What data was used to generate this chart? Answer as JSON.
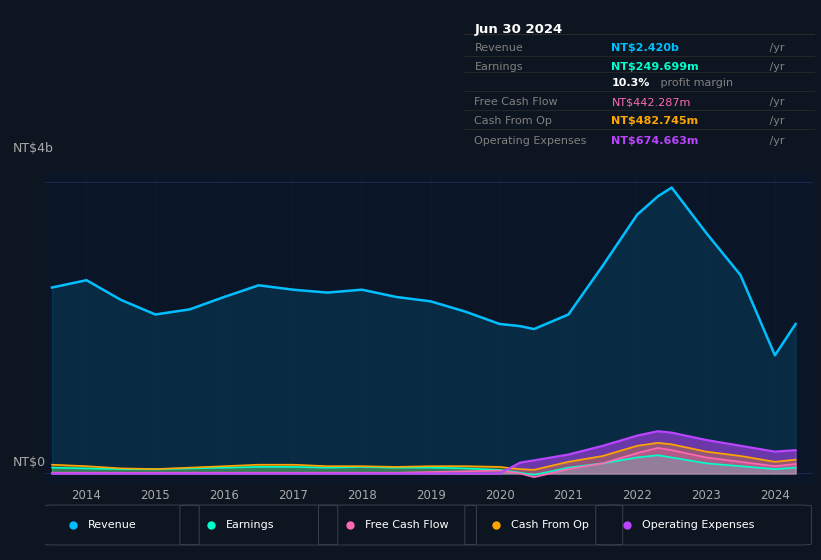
{
  "bg_color": "#0d1520",
  "plot_bg_color": "#0a1628",
  "years": [
    2013.5,
    2014.0,
    2014.5,
    2015.0,
    2015.5,
    2016.0,
    2016.5,
    2017.0,
    2017.5,
    2018.0,
    2018.5,
    2019.0,
    2019.5,
    2020.0,
    2020.3,
    2020.5,
    2021.0,
    2021.5,
    2022.0,
    2022.3,
    2022.5,
    2023.0,
    2023.5,
    2024.0,
    2024.3
  ],
  "revenue": [
    2.55,
    2.65,
    2.38,
    2.18,
    2.25,
    2.42,
    2.58,
    2.52,
    2.48,
    2.52,
    2.42,
    2.36,
    2.22,
    2.05,
    2.02,
    1.98,
    2.18,
    2.85,
    3.55,
    3.8,
    3.92,
    3.3,
    2.72,
    1.62,
    2.05
  ],
  "earnings": [
    0.08,
    0.07,
    0.06,
    0.06,
    0.07,
    0.08,
    0.09,
    0.09,
    0.08,
    0.09,
    0.08,
    0.08,
    0.07,
    0.05,
    0.01,
    -0.02,
    0.08,
    0.14,
    0.22,
    0.25,
    0.22,
    0.14,
    0.1,
    0.06,
    0.08
  ],
  "free_cash_flow": [
    0.01,
    0.01,
    0.01,
    0.01,
    0.01,
    0.01,
    0.01,
    0.01,
    0.01,
    0.01,
    0.01,
    0.02,
    0.03,
    0.04,
    0.0,
    -0.05,
    0.06,
    0.14,
    0.28,
    0.35,
    0.32,
    0.22,
    0.16,
    0.1,
    0.13
  ],
  "cash_from_op": [
    0.12,
    0.1,
    0.07,
    0.06,
    0.08,
    0.1,
    0.12,
    0.12,
    0.1,
    0.1,
    0.09,
    0.1,
    0.1,
    0.09,
    0.06,
    0.05,
    0.16,
    0.24,
    0.38,
    0.42,
    0.4,
    0.3,
    0.24,
    0.16,
    0.19
  ],
  "op_expenses": [
    0.0,
    0.0,
    0.0,
    0.0,
    0.0,
    0.0,
    0.0,
    0.0,
    0.0,
    0.0,
    0.0,
    0.0,
    0.0,
    0.0,
    0.15,
    0.18,
    0.26,
    0.38,
    0.52,
    0.58,
    0.56,
    0.46,
    0.38,
    0.3,
    0.32
  ],
  "revenue_color": "#00bfff",
  "earnings_color": "#00ffcc",
  "free_cash_flow_color": "#ff69b4",
  "cash_from_op_color": "#ffa500",
  "op_expenses_color": "#bb44ff",
  "grid_color": "#1a3050",
  "tick_color": "#aaaaaa",
  "xticks": [
    2014,
    2015,
    2016,
    2017,
    2018,
    2019,
    2020,
    2021,
    2022,
    2023,
    2024
  ],
  "ylim": [
    -0.15,
    4.15
  ],
  "xlim": [
    2013.4,
    2024.55
  ],
  "info": {
    "date": "Jun 30 2024",
    "rows": [
      {
        "label": "Revenue",
        "value": "NT$2.420b",
        "suffix": " /yr",
        "color": "#00bfff",
        "bold": true
      },
      {
        "label": "Earnings",
        "value": "NT$249.699m",
        "suffix": " /yr",
        "color": "#00ffcc",
        "bold": true
      },
      {
        "label": "",
        "value": "10.3%",
        "suffix": " profit margin",
        "color": "white",
        "bold": true
      },
      {
        "label": "Free Cash Flow",
        "value": "NT$442.287m",
        "suffix": " /yr",
        "color": "#ff69b4",
        "bold": false
      },
      {
        "label": "Cash From Op",
        "value": "NT$482.745m",
        "suffix": " /yr",
        "color": "#ffa500",
        "bold": true
      },
      {
        "label": "Operating Expenses",
        "value": "NT$674.663m",
        "suffix": " /yr",
        "color": "#bb44ff",
        "bold": true
      }
    ]
  },
  "legend": [
    {
      "label": "Revenue",
      "color": "#00bfff"
    },
    {
      "label": "Earnings",
      "color": "#00ffcc"
    },
    {
      "label": "Free Cash Flow",
      "color": "#ff69b4"
    },
    {
      "label": "Cash From Op",
      "color": "#ffa500"
    },
    {
      "label": "Operating Expenses",
      "color": "#bb44ff"
    }
  ]
}
